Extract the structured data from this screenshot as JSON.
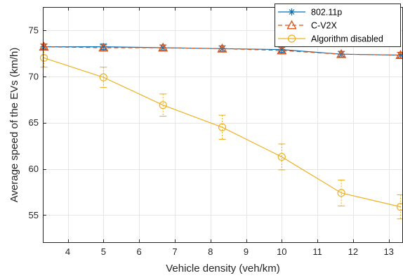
{
  "chart_data": {
    "type": "line",
    "title": "",
    "xlabel": "Vehicle density (veh/km)",
    "ylabel": "Average speed of the EVs (km/h)",
    "xlim": [
      3.3,
      13.4
    ],
    "ylim": [
      52,
      77.5
    ],
    "xticks": [
      4,
      5,
      6,
      7,
      8,
      9,
      10,
      11,
      12,
      13
    ],
    "yticks": [
      55,
      60,
      65,
      70,
      75
    ],
    "grid": true,
    "legend_position": "top-right",
    "x": [
      3.33,
      5,
      6.67,
      8.33,
      10,
      11.67,
      13.33
    ],
    "series": [
      {
        "name": "802.11p",
        "color": "#0072BD",
        "marker": "asterisk",
        "line_style": "solid",
        "values": [
          73.2,
          73.2,
          73.1,
          73.0,
          72.9,
          72.4,
          72.3
        ],
        "error": [
          0.3,
          0.3,
          0.3,
          0.3,
          0.3,
          0.3,
          0.3
        ]
      },
      {
        "name": "C-V2X",
        "color": "#D95319",
        "marker": "triangle",
        "line_style": "dashed",
        "values": [
          73.2,
          73.1,
          73.1,
          73.0,
          72.8,
          72.4,
          72.3
        ],
        "error": [
          0.3,
          0.3,
          0.3,
          0.3,
          0.3,
          0.3,
          0.3
        ]
      },
      {
        "name": "Algorithm disabled",
        "color": "#EDB120",
        "marker": "circle",
        "line_style": "solid",
        "values": [
          72.0,
          69.9,
          66.9,
          64.5,
          61.3,
          57.4,
          55.9
        ],
        "error": [
          1.0,
          1.1,
          1.2,
          1.3,
          1.4,
          1.4,
          1.3
        ]
      }
    ]
  }
}
